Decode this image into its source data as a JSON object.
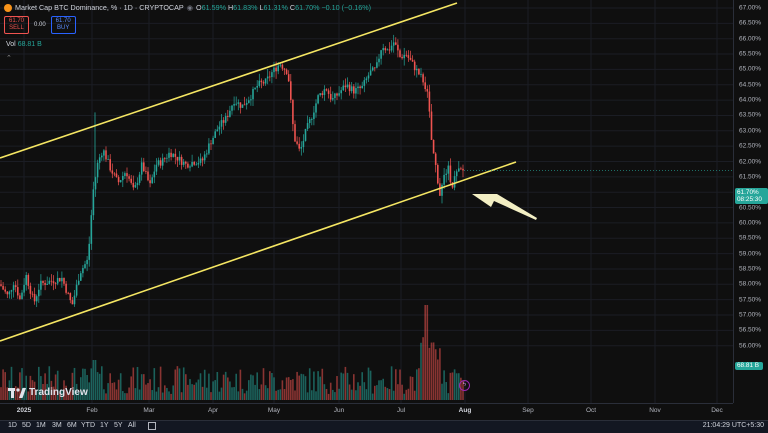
{
  "header": {
    "symbol_title": "Market Cap BTC Dominance, % · 1D · CRYPTOCAP",
    "ohlc": [
      {
        "k": "O",
        "v": "61.59%"
      },
      {
        "k": "H",
        "v": "61.83%"
      },
      {
        "k": "L",
        "v": "61.31%"
      },
      {
        "k": "C",
        "v": "61.70%"
      },
      {
        "k": "",
        "v": "−0.10 (−0.16%)"
      }
    ],
    "sell_price": "61.70",
    "sell_label": "SELL",
    "spread": "0.00",
    "buy_price": "61.70",
    "buy_label": "BUY",
    "vol_label": "Vol",
    "vol_value": "68.81 B"
  },
  "price_axis": {
    "ticks": [
      "67.00%",
      "66.50%",
      "66.00%",
      "65.50%",
      "65.00%",
      "64.50%",
      "64.00%",
      "63.50%",
      "63.00%",
      "62.50%",
      "62.00%",
      "61.50%",
      "61.00%",
      "60.50%",
      "60.00%",
      "59.50%",
      "59.00%",
      "58.50%",
      "58.00%",
      "57.50%",
      "57.00%",
      "56.50%",
      "56.00%"
    ],
    "last_price": "61.70%",
    "countdown": "08:25:30",
    "volume_label": "68.81 B"
  },
  "time_axis": {
    "ticks": [
      {
        "label": "2025",
        "bold": true
      },
      {
        "label": "Feb",
        "bold": false
      },
      {
        "label": "Mar",
        "bold": false
      },
      {
        "label": "Apr",
        "bold": false
      },
      {
        "label": "May",
        "bold": false
      },
      {
        "label": "Jun",
        "bold": false
      },
      {
        "label": "Jul",
        "bold": false
      },
      {
        "label": "Aug",
        "bold": true
      },
      {
        "label": "Sep",
        "bold": false
      },
      {
        "label": "Oct",
        "bold": false
      },
      {
        "label": "Nov",
        "bold": false
      },
      {
        "label": "Dec",
        "bold": false
      }
    ]
  },
  "bottom_bar": {
    "ranges": [
      "1D",
      "5D",
      "1M",
      "3M",
      "6M",
      "YTD",
      "1Y",
      "5Y",
      "All"
    ],
    "clock": "21:04:29 UTC+5:30"
  },
  "brand": "TradingView",
  "colors": {
    "up": "#26a69a",
    "down": "#ef5350",
    "channel": "#f5e663",
    "arrow": "#f3efc4"
  }
}
